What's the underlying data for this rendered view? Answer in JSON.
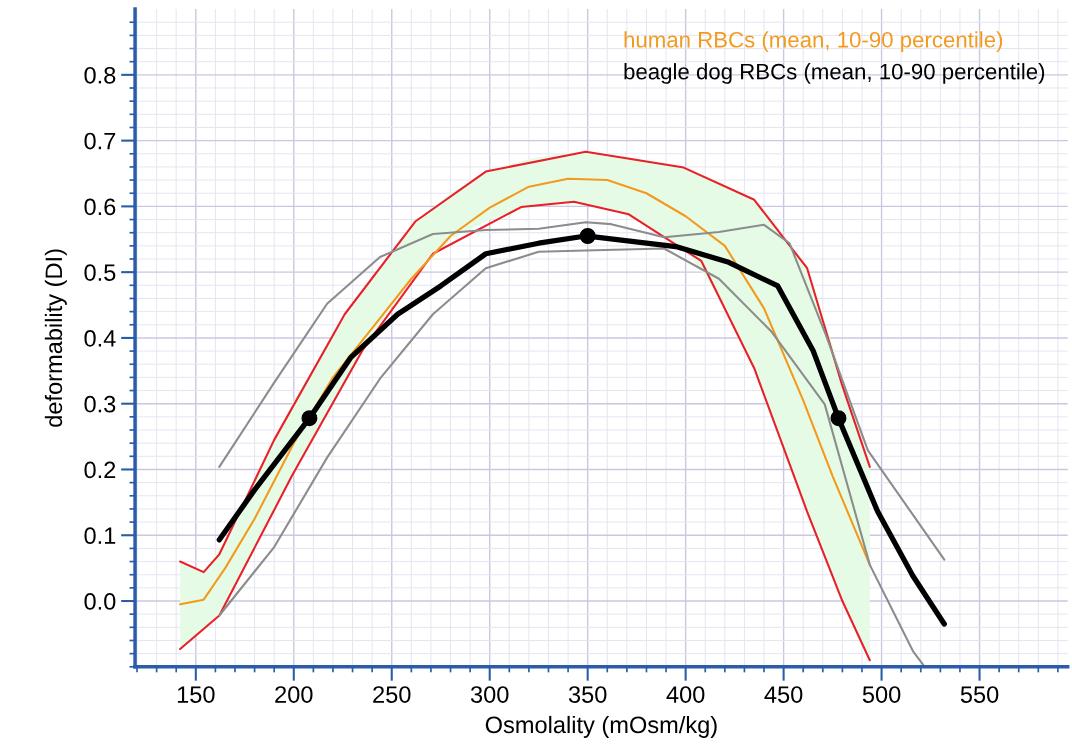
{
  "chart_data": {
    "type": "line",
    "xlabel": "Osmolality (mOsm/kg)",
    "ylabel": "deformability (DI)",
    "xlim": [
      119,
      595
    ],
    "ylim": [
      -0.1,
      0.9
    ],
    "xticks": [
      150,
      200,
      250,
      300,
      350,
      400,
      450,
      500,
      550
    ],
    "yticks": [
      {
        "value": 0,
        "label": "0.0"
      },
      {
        "value": 0.1,
        "label": "0.1"
      },
      {
        "value": 0.2,
        "label": "0.2"
      },
      {
        "value": 0.3,
        "label": "0.3"
      },
      {
        "value": 0.4,
        "label": "0.4"
      },
      {
        "value": 0.5,
        "label": "0.5"
      },
      {
        "value": 0.6,
        "label": "0.6"
      },
      {
        "value": 0.7,
        "label": "0.7"
      },
      {
        "value": 0.8,
        "label": "0.8"
      }
    ],
    "grid": true,
    "legend": "top right",
    "marker": "none",
    "line_style": "solid",
    "series": [
      {
        "color": "#e8202a",
        "x": [
          142,
          154,
          162,
          190,
          226,
          262,
          298,
          349,
          399,
          435,
          462,
          480,
          494
        ],
        "values": [
          0.06,
          0.044,
          0.071,
          0.245,
          0.436,
          0.577,
          0.653,
          0.683,
          0.659,
          0.61,
          0.506,
          0.327,
          0.204
        ]
      },
      {
        "color": "#e8202a",
        "x": [
          142,
          162,
          199,
          235,
          271,
          316,
          343,
          371,
          408,
          435,
          462,
          480,
          494
        ],
        "values": [
          -0.073,
          -0.022,
          0.19,
          0.381,
          0.528,
          0.599,
          0.607,
          0.588,
          0.517,
          0.354,
          0.136,
          0.0,
          -0.09
        ]
      },
      {
        "name": "human RBCs (mean, 10-90 percentile)",
        "color": "#f39a1e",
        "x": [
          142,
          154,
          165,
          180,
          200,
          220,
          240,
          260,
          280,
          300,
          320,
          340,
          360,
          380,
          400,
          420,
          440,
          460,
          475,
          494
        ],
        "values": [
          -0.005,
          0.002,
          0.05,
          0.125,
          0.24,
          0.34,
          0.415,
          0.49,
          0.555,
          0.598,
          0.63,
          0.642,
          0.64,
          0.62,
          0.585,
          0.54,
          0.445,
          0.305,
          0.19,
          0.055
        ],
        "lower": [
          -0.073,
          -0.045,
          -0.005,
          0.08,
          0.195,
          0.305,
          0.405,
          0.49,
          0.55,
          0.58,
          0.6,
          0.606,
          0.598,
          0.572,
          0.535,
          0.45,
          0.32,
          0.155,
          0.04,
          -0.09
        ],
        "upper": [
          0.06,
          0.044,
          0.09,
          0.185,
          0.305,
          0.405,
          0.49,
          0.57,
          0.62,
          0.655,
          0.672,
          0.682,
          0.68,
          0.67,
          0.658,
          0.634,
          0.597,
          0.515,
          0.39,
          0.204
        ]
      },
      {
        "color": "#8c8c8c",
        "x": [
          162,
          190,
          217,
          244,
          271,
          298,
          325,
          349,
          362,
          389,
          417,
          440,
          453,
          471,
          493,
          532
        ],
        "values": [
          0.204,
          0.332,
          0.452,
          0.523,
          0.558,
          0.564,
          0.566,
          0.576,
          0.573,
          0.553,
          0.561,
          0.572,
          0.544,
          0.409,
          0.229,
          0.063
        ]
      },
      {
        "color": "#8c8c8c",
        "x": [
          162,
          190,
          217,
          244,
          271,
          298,
          325,
          349,
          389,
          417,
          444,
          471,
          494,
          516,
          522
        ],
        "values": [
          -0.022,
          0.082,
          0.218,
          0.338,
          0.436,
          0.506,
          0.531,
          0.533,
          0.536,
          0.49,
          0.409,
          0.299,
          0.055,
          -0.076,
          -0.1
        ]
      },
      {
        "name": "beagle dog RBCs (mean, 10-90 percentile)",
        "color": "#000000",
        "x": [
          162,
          180,
          208,
          229,
          253,
          275,
          298,
          325,
          349,
          395,
          422,
          447,
          465,
          478,
          498,
          516,
          532
        ],
        "values": [
          0.093,
          0.169,
          0.278,
          0.37,
          0.436,
          0.479,
          0.528,
          0.544,
          0.555,
          0.539,
          0.515,
          0.479,
          0.381,
          0.278,
          0.136,
          0.038,
          -0.035
        ]
      },
      {
        "type": "scatter",
        "color": "#000000",
        "marker": "circle",
        "x": [
          208,
          350,
          478
        ],
        "values": [
          0.278,
          0.555,
          0.278
        ]
      }
    ]
  }
}
